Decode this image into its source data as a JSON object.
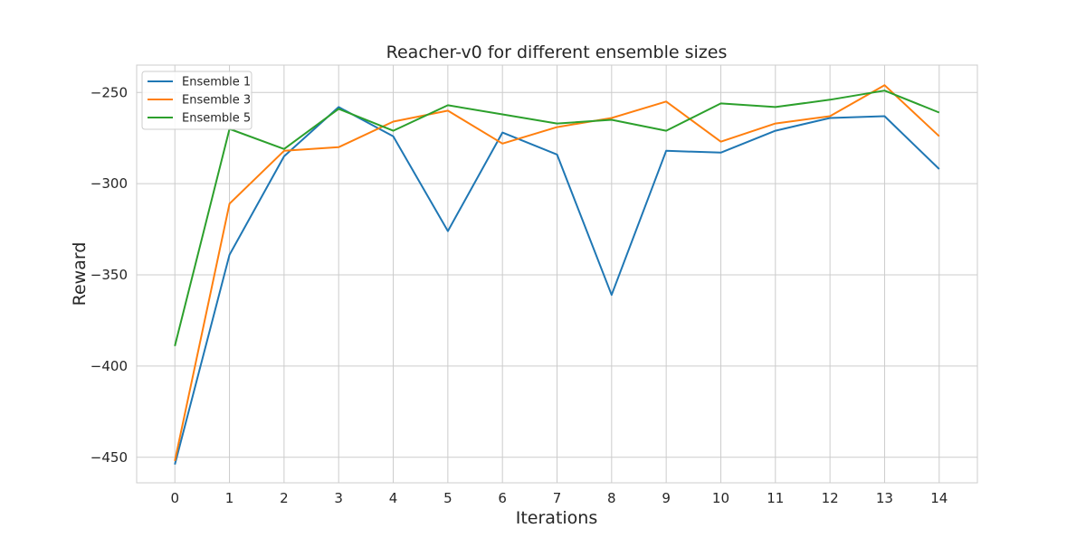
{
  "chart_data": {
    "type": "line",
    "title": "Reacher-v0 for different ensemble sizes",
    "xlabel": "Iterations",
    "ylabel": "Reward",
    "x": [
      0,
      1,
      2,
      3,
      4,
      5,
      6,
      7,
      8,
      9,
      10,
      11,
      12,
      13,
      14
    ],
    "xlim": [
      -0.7,
      14.7
    ],
    "ylim": [
      -464,
      -235
    ],
    "yticks": [
      -450,
      -400,
      -350,
      -300,
      -250
    ],
    "grid": true,
    "legend_position": "top-left",
    "series": [
      {
        "name": "Ensemble 1",
        "color": "#1f77b4",
        "values": [
          -454,
          -339,
          -285,
          -258,
          -274,
          -326,
          -272,
          -284,
          -361,
          -282,
          -283,
          -271,
          -264,
          -263,
          -292
        ]
      },
      {
        "name": "Ensemble 3",
        "color": "#ff7f0e",
        "values": [
          -452,
          -311,
          -282,
          -280,
          -266,
          -260,
          -278,
          -269,
          -264,
          -255,
          -277,
          -267,
          -263,
          -246,
          -274
        ]
      },
      {
        "name": "Ensemble 5",
        "color": "#2ca02c",
        "values": [
          -389,
          -270,
          -281,
          -259,
          -271,
          -257,
          -262,
          -267,
          -265,
          -271,
          -256,
          -258,
          -254,
          -249,
          -261
        ]
      }
    ]
  }
}
